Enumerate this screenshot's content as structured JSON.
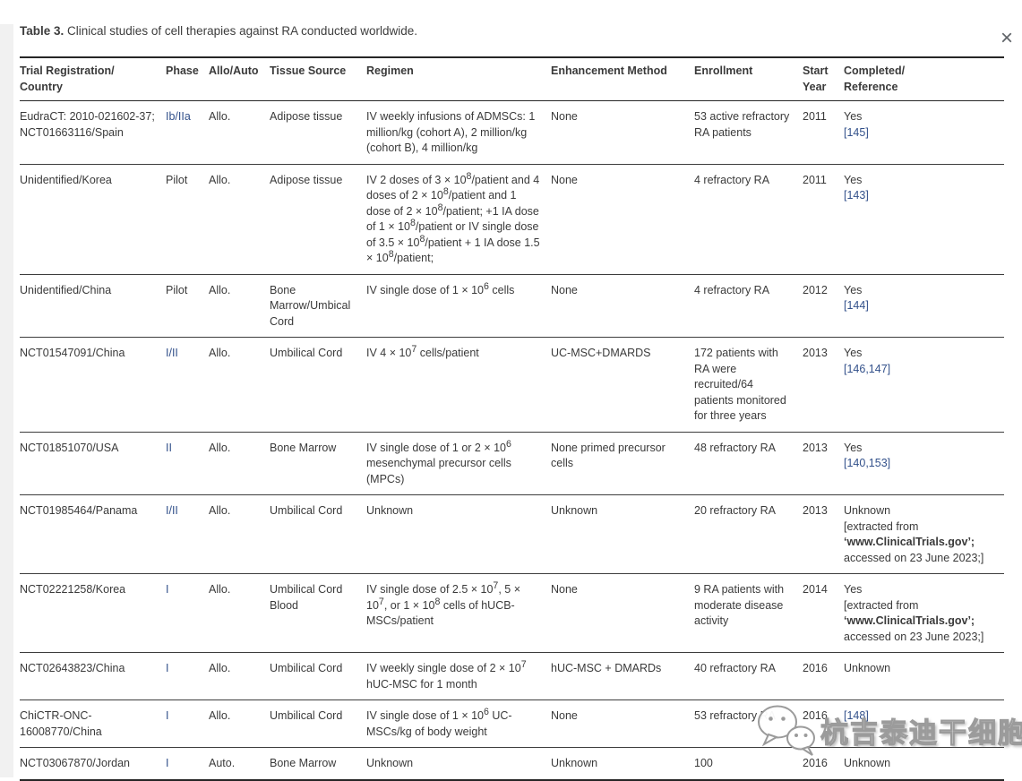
{
  "window": {
    "close_icon": "×"
  },
  "caption": {
    "label": "Table 3.",
    "text": " Clinical studies of cell therapies against RA conducted worldwide."
  },
  "colors": {
    "link_blue": "#33518b",
    "body_text": "#3a3a3a"
  },
  "watermark": {
    "icon": "wechat-icon",
    "text": "杭吉泰迪干细胞"
  },
  "table": {
    "columns": [
      "Trial Registration/\nCountry",
      "Phase",
      "Allo/Auto",
      "Tissue Source",
      "Regimen",
      "Enhancement Method",
      "Enrollment",
      "Start\nYear",
      "Completed/\nReference"
    ],
    "rows": [
      {
        "trial": "EudraCT: 2010-021602-37; NCT01663116/Spain",
        "phase": "Ib/IIa",
        "phase_link": true,
        "allo": "Allo.",
        "tissue": "Adipose tissue",
        "regimen": "IV weekly infusions of ADMSCs: 1 million/kg (cohort A), 2 million/kg (cohort B), 4 million/kg",
        "enhancement": "None",
        "enrollment": "53 active refractory RA patients",
        "year": "2011",
        "completed": [
          {
            "text": "Yes",
            "style": "plain"
          },
          {
            "text": "[145]",
            "style": "link"
          }
        ]
      },
      {
        "trial": "Unidentified/Korea",
        "phase": "Pilot",
        "phase_link": false,
        "allo": "Allo.",
        "tissue": "Adipose tissue",
        "regimen": "IV 2 doses of 3 × 10^8/patient and 4 doses of 2 × 10^8/patient and 1 dose of 2 × 10^8/patient; +1 IA dose of 1 × 10^8/patient or IV single dose of 3.5 × 10^8/patient + 1 IA dose 1.5 × 10^8/patient;",
        "enhancement": "None",
        "enrollment": "4 refractory RA",
        "year": "2011",
        "completed": [
          {
            "text": "Yes",
            "style": "plain"
          },
          {
            "text": "[143]",
            "style": "link"
          }
        ]
      },
      {
        "trial": "Unidentified/China",
        "phase": "Pilot",
        "phase_link": false,
        "allo": "Allo.",
        "tissue": "Bone Marrow/Umbical Cord",
        "regimen": "IV single dose of 1 × 10^6 cells",
        "enhancement": "None",
        "enrollment": "4 refractory RA",
        "year": "2012",
        "completed": [
          {
            "text": "Yes",
            "style": "plain"
          },
          {
            "text": "[144]",
            "style": "link"
          }
        ]
      },
      {
        "trial": "NCT01547091/China",
        "phase": "I/II",
        "phase_link": true,
        "allo": "Allo.",
        "tissue": "Umbilical Cord",
        "regimen": "IV 4 × 10^7 cells/patient",
        "enhancement": "UC-MSC+DMARDS",
        "enrollment": "172 patients with RA were recruited/64 patients monitored for three years",
        "year": "2013",
        "completed": [
          {
            "text": "Yes",
            "style": "plain"
          },
          {
            "text": "[146,147]",
            "style": "link"
          }
        ]
      },
      {
        "trial": "NCT01851070/USA",
        "phase": "II",
        "phase_link": true,
        "allo": "Allo.",
        "tissue": "Bone Marrow",
        "regimen": "IV single dose of 1 or 2 × 10^6 mesenchymal precursor cells (MPCs)",
        "enhancement": "None primed precursor cells",
        "enrollment": "48 refractory RA",
        "year": "2013",
        "completed": [
          {
            "text": "Yes",
            "style": "plain"
          },
          {
            "text": "[140,153]",
            "style": "link"
          }
        ]
      },
      {
        "trial": "NCT01985464/Panama",
        "phase": "I/II",
        "phase_link": true,
        "allo": "Allo.",
        "tissue": "Umbilical Cord",
        "regimen": "Unknown",
        "enhancement": "Unknown",
        "enrollment": "20 refractory RA",
        "year": "2013",
        "completed": [
          {
            "text": "Unknown",
            "style": "plain"
          },
          {
            "text": "[extracted from",
            "style": "plain"
          },
          {
            "text": "‘www.ClinicalTrials.gov’;",
            "style": "bold"
          },
          {
            "text": "accessed on 23 June 2023;]",
            "style": "plain"
          }
        ]
      },
      {
        "trial": "NCT02221258/Korea",
        "phase": "I",
        "phase_link": true,
        "allo": "Allo.",
        "tissue": "Umbilical Cord Blood",
        "regimen": "IV single dose of 2.5 × 10^7, 5 × 10^7, or 1 × 10^8 cells of hUCB-MSCs/patient",
        "enhancement": "None",
        "enrollment": "9 RA patients with moderate disease activity",
        "year": "2014",
        "completed": [
          {
            "text": "Yes",
            "style": "plain"
          },
          {
            "text": "[extracted from",
            "style": "plain"
          },
          {
            "text": "‘www.ClinicalTrials.gov’;",
            "style": "bold"
          },
          {
            "text": "accessed on 23 June 2023;]",
            "style": "plain"
          }
        ]
      },
      {
        "trial": "NCT02643823/China",
        "phase": "I",
        "phase_link": true,
        "allo": "Allo.",
        "tissue": "Umbilical Cord",
        "regimen": "IV weekly single dose of 2 × 10^7 hUC-MSC for 1 month",
        "enhancement": "hUC-MSC + DMARDs",
        "enrollment": "40 refractory RA",
        "year": "2016",
        "completed": [
          {
            "text": "Unknown",
            "style": "plain"
          }
        ]
      },
      {
        "trial": "ChiCTR-ONC-16008770/China",
        "phase": "I",
        "phase_link": true,
        "allo": "Allo.",
        "tissue": "Umbilical Cord",
        "regimen": "IV single dose of 1 × 10^6 UC-MSCs/kg of body weight",
        "enhancement": "None",
        "enrollment": "53 refractory RA",
        "year": "2016",
        "completed": [
          {
            "text": "[148]",
            "style": "link"
          }
        ]
      },
      {
        "trial": "NCT03067870/Jordan",
        "phase": "I",
        "phase_link": true,
        "allo": "Auto.",
        "tissue": "Bone Marrow",
        "regimen": "Unknown",
        "enhancement": "Unknown",
        "enrollment": "100",
        "year": "2016",
        "completed": [
          {
            "text": "Unknown",
            "style": "plain"
          }
        ]
      }
    ]
  }
}
